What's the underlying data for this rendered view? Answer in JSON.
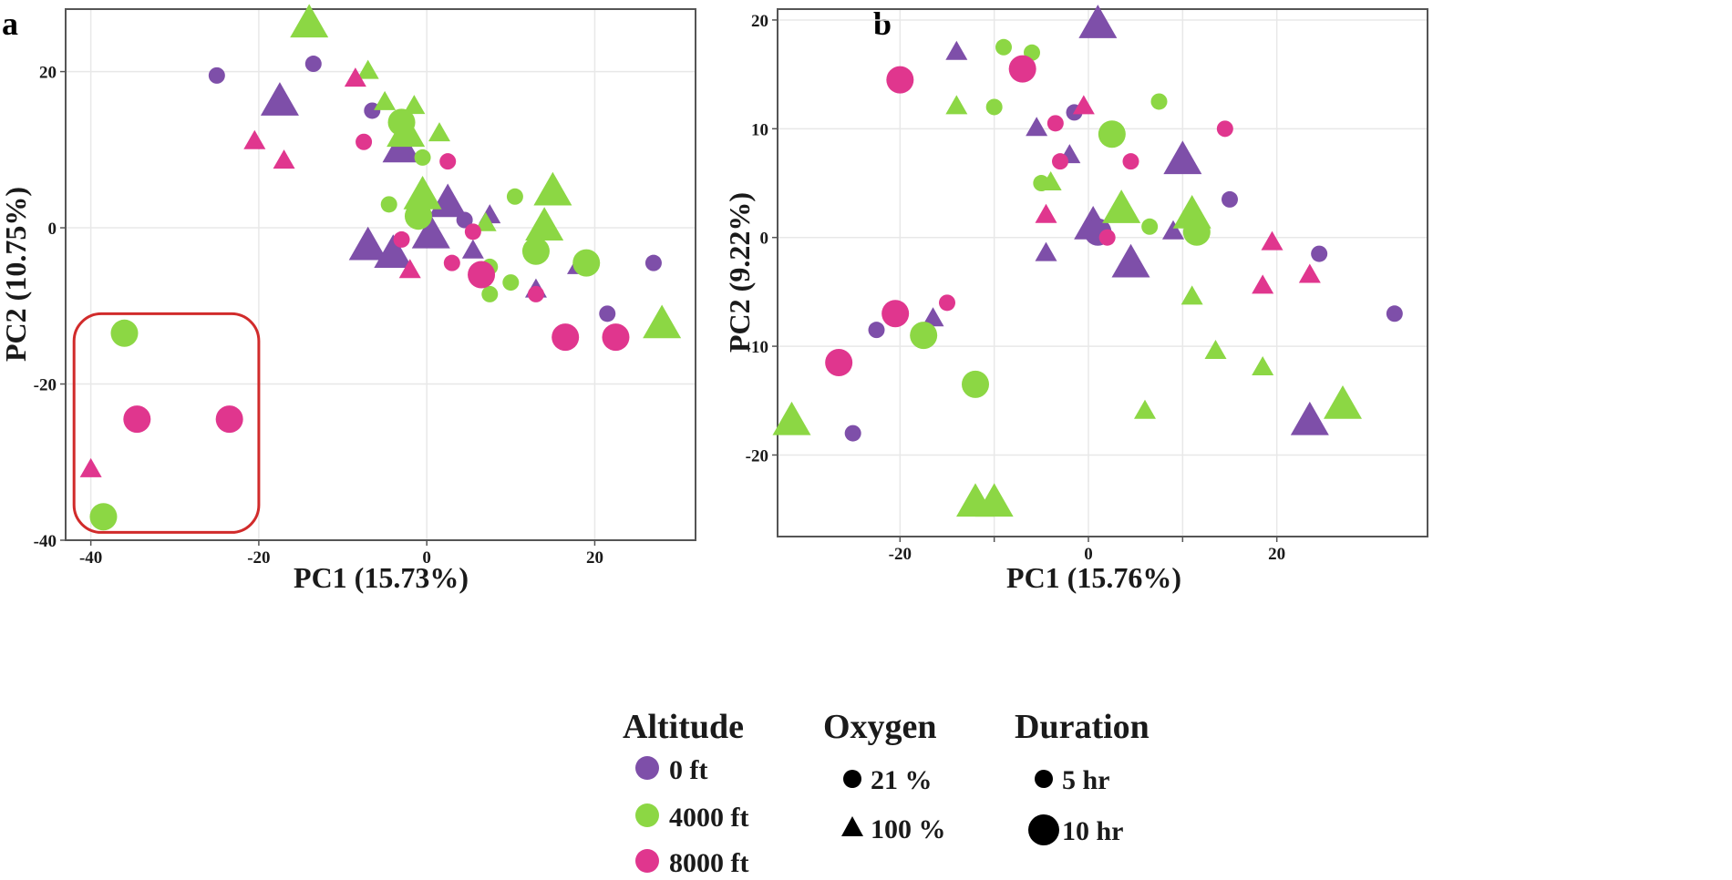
{
  "colors": {
    "0 ft": "#7e4fa9",
    "4000 ft": "#8cd744",
    "8000 ft": "#e0368e",
    "highlight_box": "#d12b2b",
    "axis": "#555555",
    "grid": "#e8e8e8"
  },
  "legend": {
    "altitude_title": "Altitude",
    "altitude_items": [
      "0 ft",
      "4000 ft",
      "8000 ft"
    ],
    "oxygen_title": "Oxygen",
    "oxygen_items": [
      {
        "label": "21 %",
        "marker": "circle"
      },
      {
        "label": "100 %",
        "marker": "triangle"
      }
    ],
    "duration_title": "Duration",
    "duration_items": [
      {
        "label": "5 hr",
        "size": "small"
      },
      {
        "label": "10 hr",
        "size": "large"
      }
    ]
  },
  "chart_data": [
    {
      "panel": "a",
      "type": "scatter",
      "xlabel": "PC1 (15.73%)",
      "ylabel": "PC2 (10.75%)",
      "xlim": [
        -43,
        32
      ],
      "ylim": [
        -40,
        28
      ],
      "xticks": [
        -40,
        -20,
        0,
        20
      ],
      "yticks": [
        -40,
        -20,
        0,
        20
      ],
      "xtick_labels": [
        "-40",
        "-20",
        "0",
        "20"
      ],
      "ytick_labels": [
        "-40",
        "-20",
        "0",
        "20"
      ],
      "grid": true,
      "highlight_box": {
        "x": [
          -42,
          -20
        ],
        "y": [
          -39,
          -11
        ]
      },
      "points": [
        {
          "x": -25,
          "y": 19.5,
          "alt": "0 ft",
          "shape": "circle",
          "dur": "5 hr"
        },
        {
          "x": -13.5,
          "y": 21,
          "alt": "0 ft",
          "shape": "circle",
          "dur": "5 hr"
        },
        {
          "x": -17.5,
          "y": 16,
          "alt": "0 ft",
          "shape": "triangle",
          "dur": "10 hr"
        },
        {
          "x": -6.5,
          "y": 15,
          "alt": "0 ft",
          "shape": "circle",
          "dur": "5 hr"
        },
        {
          "x": -3,
          "y": 10,
          "alt": "0 ft",
          "shape": "triangle",
          "dur": "10 hr"
        },
        {
          "x": 2.5,
          "y": 3,
          "alt": "0 ft",
          "shape": "triangle",
          "dur": "10 hr"
        },
        {
          "x": 4.5,
          "y": 1,
          "alt": "0 ft",
          "shape": "circle",
          "dur": "5 hr"
        },
        {
          "x": 7.5,
          "y": 1.5,
          "alt": "0 ft",
          "shape": "triangle",
          "dur": "5 hr"
        },
        {
          "x": 0.5,
          "y": -1,
          "alt": "0 ft",
          "shape": "triangle",
          "dur": "10 hr"
        },
        {
          "x": -7,
          "y": -2.5,
          "alt": "0 ft",
          "shape": "triangle",
          "dur": "10 hr"
        },
        {
          "x": -4,
          "y": -3.5,
          "alt": "0 ft",
          "shape": "triangle",
          "dur": "10 hr"
        },
        {
          "x": 5.5,
          "y": -3,
          "alt": "0 ft",
          "shape": "triangle",
          "dur": "5 hr"
        },
        {
          "x": 13,
          "y": -8,
          "alt": "0 ft",
          "shape": "triangle",
          "dur": "5 hr"
        },
        {
          "x": 18,
          "y": -5,
          "alt": "0 ft",
          "shape": "triangle",
          "dur": "5 hr"
        },
        {
          "x": 21.5,
          "y": -11,
          "alt": "0 ft",
          "shape": "circle",
          "dur": "5 hr"
        },
        {
          "x": 27,
          "y": -4.5,
          "alt": "0 ft",
          "shape": "circle",
          "dur": "5 hr"
        },
        {
          "x": -14,
          "y": 26,
          "alt": "4000 ft",
          "shape": "triangle",
          "dur": "10 hr"
        },
        {
          "x": -7,
          "y": 20,
          "alt": "4000 ft",
          "shape": "triangle",
          "dur": "5 hr"
        },
        {
          "x": -5,
          "y": 16,
          "alt": "4000 ft",
          "shape": "triangle",
          "dur": "5 hr"
        },
        {
          "x": -1.5,
          "y": 15.5,
          "alt": "4000 ft",
          "shape": "triangle",
          "dur": "5 hr"
        },
        {
          "x": -3,
          "y": 13.5,
          "alt": "4000 ft",
          "shape": "circle",
          "dur": "10 hr"
        },
        {
          "x": -2.5,
          "y": 12,
          "alt": "4000 ft",
          "shape": "triangle",
          "dur": "10 hr"
        },
        {
          "x": 1.5,
          "y": 12,
          "alt": "4000 ft",
          "shape": "triangle",
          "dur": "5 hr"
        },
        {
          "x": -0.5,
          "y": 9,
          "alt": "4000 ft",
          "shape": "circle",
          "dur": "5 hr"
        },
        {
          "x": -0.5,
          "y": 4,
          "alt": "4000 ft",
          "shape": "triangle",
          "dur": "10 hr"
        },
        {
          "x": -4.5,
          "y": 3,
          "alt": "4000 ft",
          "shape": "circle",
          "dur": "5 hr"
        },
        {
          "x": -1,
          "y": 1.5,
          "alt": "4000 ft",
          "shape": "circle",
          "dur": "10 hr"
        },
        {
          "x": 10.5,
          "y": 4,
          "alt": "4000 ft",
          "shape": "circle",
          "dur": "5 hr"
        },
        {
          "x": 15,
          "y": 4.5,
          "alt": "4000 ft",
          "shape": "triangle",
          "dur": "10 hr"
        },
        {
          "x": 14,
          "y": 0,
          "alt": "4000 ft",
          "shape": "triangle",
          "dur": "10 hr"
        },
        {
          "x": 13,
          "y": -3,
          "alt": "4000 ft",
          "shape": "circle",
          "dur": "10 hr"
        },
        {
          "x": 19,
          "y": -4.5,
          "alt": "4000 ft",
          "shape": "circle",
          "dur": "10 hr"
        },
        {
          "x": 7,
          "y": 0.5,
          "alt": "4000 ft",
          "shape": "triangle",
          "dur": "5 hr"
        },
        {
          "x": 7.5,
          "y": -5,
          "alt": "4000 ft",
          "shape": "circle",
          "dur": "5 hr"
        },
        {
          "x": 10,
          "y": -7,
          "alt": "4000 ft",
          "shape": "circle",
          "dur": "5 hr"
        },
        {
          "x": 7.5,
          "y": -8.5,
          "alt": "4000 ft",
          "shape": "circle",
          "dur": "5 hr"
        },
        {
          "x": 28,
          "y": -12.5,
          "alt": "4000 ft",
          "shape": "triangle",
          "dur": "10 hr"
        },
        {
          "x": -36,
          "y": -13.5,
          "alt": "4000 ft",
          "shape": "circle",
          "dur": "10 hr"
        },
        {
          "x": -38.5,
          "y": -37,
          "alt": "4000 ft",
          "shape": "circle",
          "dur": "10 hr"
        },
        {
          "x": -8.5,
          "y": 19,
          "alt": "8000 ft",
          "shape": "triangle",
          "dur": "5 hr"
        },
        {
          "x": -20.5,
          "y": 11,
          "alt": "8000 ft",
          "shape": "triangle",
          "dur": "5 hr"
        },
        {
          "x": -17,
          "y": 8.5,
          "alt": "8000 ft",
          "shape": "triangle",
          "dur": "5 hr"
        },
        {
          "x": -7.5,
          "y": 11,
          "alt": "8000 ft",
          "shape": "circle",
          "dur": "5 hr"
        },
        {
          "x": 2.5,
          "y": 8.5,
          "alt": "8000 ft",
          "shape": "circle",
          "dur": "5 hr"
        },
        {
          "x": 5.5,
          "y": -0.5,
          "alt": "8000 ft",
          "shape": "circle",
          "dur": "5 hr"
        },
        {
          "x": -3,
          "y": -1.5,
          "alt": "8000 ft",
          "shape": "circle",
          "dur": "5 hr"
        },
        {
          "x": 3,
          "y": -4.5,
          "alt": "8000 ft",
          "shape": "circle",
          "dur": "5 hr"
        },
        {
          "x": -2,
          "y": -5.5,
          "alt": "8000 ft",
          "shape": "triangle",
          "dur": "5 hr"
        },
        {
          "x": 6.5,
          "y": -6,
          "alt": "8000 ft",
          "shape": "circle",
          "dur": "10 hr"
        },
        {
          "x": 13,
          "y": -8.5,
          "alt": "8000 ft",
          "shape": "circle",
          "dur": "5 hr"
        },
        {
          "x": 16.5,
          "y": -14,
          "alt": "8000 ft",
          "shape": "circle",
          "dur": "10 hr"
        },
        {
          "x": 22.5,
          "y": -14,
          "alt": "8000 ft",
          "shape": "circle",
          "dur": "10 hr"
        },
        {
          "x": -34.5,
          "y": -24.5,
          "alt": "8000 ft",
          "shape": "circle",
          "dur": "10 hr"
        },
        {
          "x": -23.5,
          "y": -24.5,
          "alt": "8000 ft",
          "shape": "circle",
          "dur": "10 hr"
        },
        {
          "x": -40,
          "y": -31,
          "alt": "8000 ft",
          "shape": "triangle",
          "dur": "5 hr"
        }
      ]
    },
    {
      "panel": "b",
      "type": "scatter",
      "xlabel": "PC1 (15.76%)",
      "ylabel": "PC2 (9.22%)",
      "xlim": [
        -33,
        36
      ],
      "ylim": [
        -27.5,
        21
      ],
      "xticks": [
        -20,
        -10,
        0,
        10,
        20
      ],
      "yticks": [
        -20,
        -10,
        0,
        10,
        20
      ],
      "xtick_labels": [
        "-20",
        "",
        "0",
        "",
        "20"
      ],
      "ytick_labels": [
        "-20",
        "-10",
        "0",
        "10",
        "20"
      ],
      "grid": true,
      "points": [
        {
          "x": 1,
          "y": 19.5,
          "alt": "0 ft",
          "shape": "triangle",
          "dur": "10 hr"
        },
        {
          "x": -14,
          "y": 17,
          "alt": "0 ft",
          "shape": "triangle",
          "dur": "5 hr"
        },
        {
          "x": -1.5,
          "y": 11.5,
          "alt": "0 ft",
          "shape": "circle",
          "dur": "5 hr"
        },
        {
          "x": -5.5,
          "y": 10,
          "alt": "0 ft",
          "shape": "triangle",
          "dur": "5 hr"
        },
        {
          "x": -2,
          "y": 7.5,
          "alt": "0 ft",
          "shape": "triangle",
          "dur": "5 hr"
        },
        {
          "x": 10,
          "y": 7,
          "alt": "0 ft",
          "shape": "triangle",
          "dur": "10 hr"
        },
        {
          "x": 15,
          "y": 3.5,
          "alt": "0 ft",
          "shape": "circle",
          "dur": "5 hr"
        },
        {
          "x": 0.5,
          "y": 1,
          "alt": "0 ft",
          "shape": "triangle",
          "dur": "10 hr"
        },
        {
          "x": 1,
          "y": 0.5,
          "alt": "0 ft",
          "shape": "circle",
          "dur": "10 hr"
        },
        {
          "x": 9,
          "y": 0.5,
          "alt": "0 ft",
          "shape": "triangle",
          "dur": "5 hr"
        },
        {
          "x": -4.5,
          "y": -1.5,
          "alt": "0 ft",
          "shape": "triangle",
          "dur": "5 hr"
        },
        {
          "x": 4.5,
          "y": -2.5,
          "alt": "0 ft",
          "shape": "triangle",
          "dur": "10 hr"
        },
        {
          "x": 24.5,
          "y": -1.5,
          "alt": "0 ft",
          "shape": "circle",
          "dur": "5 hr"
        },
        {
          "x": -16.5,
          "y": -7.5,
          "alt": "0 ft",
          "shape": "triangle",
          "dur": "5 hr"
        },
        {
          "x": -22.5,
          "y": -8.5,
          "alt": "0 ft",
          "shape": "circle",
          "dur": "5 hr"
        },
        {
          "x": 32.5,
          "y": -7,
          "alt": "0 ft",
          "shape": "circle",
          "dur": "5 hr"
        },
        {
          "x": -25,
          "y": -18,
          "alt": "0 ft",
          "shape": "circle",
          "dur": "5 hr"
        },
        {
          "x": 23.5,
          "y": -17,
          "alt": "0 ft",
          "shape": "triangle",
          "dur": "10 hr"
        },
        {
          "x": -9,
          "y": 17.5,
          "alt": "4000 ft",
          "shape": "circle",
          "dur": "5 hr"
        },
        {
          "x": -6,
          "y": 17,
          "alt": "4000 ft",
          "shape": "circle",
          "dur": "5 hr"
        },
        {
          "x": -14,
          "y": 12,
          "alt": "4000 ft",
          "shape": "triangle",
          "dur": "5 hr"
        },
        {
          "x": -10,
          "y": 12,
          "alt": "4000 ft",
          "shape": "circle",
          "dur": "5 hr"
        },
        {
          "x": 7.5,
          "y": 12.5,
          "alt": "4000 ft",
          "shape": "circle",
          "dur": "5 hr"
        },
        {
          "x": 2.5,
          "y": 9.5,
          "alt": "4000 ft",
          "shape": "circle",
          "dur": "10 hr"
        },
        {
          "x": -5,
          "y": 5,
          "alt": "4000 ft",
          "shape": "circle",
          "dur": "5 hr"
        },
        {
          "x": -4,
          "y": 5,
          "alt": "4000 ft",
          "shape": "triangle",
          "dur": "5 hr"
        },
        {
          "x": 3.5,
          "y": 2.5,
          "alt": "4000 ft",
          "shape": "triangle",
          "dur": "10 hr"
        },
        {
          "x": 6.5,
          "y": 1,
          "alt": "4000 ft",
          "shape": "circle",
          "dur": "5 hr"
        },
        {
          "x": 11,
          "y": 2,
          "alt": "4000 ft",
          "shape": "triangle",
          "dur": "10 hr"
        },
        {
          "x": 11.5,
          "y": 0.5,
          "alt": "4000 ft",
          "shape": "circle",
          "dur": "10 hr"
        },
        {
          "x": 11,
          "y": -5.5,
          "alt": "4000 ft",
          "shape": "triangle",
          "dur": "5 hr"
        },
        {
          "x": -17.5,
          "y": -9,
          "alt": "4000 ft",
          "shape": "circle",
          "dur": "10 hr"
        },
        {
          "x": -12,
          "y": -13.5,
          "alt": "4000 ft",
          "shape": "circle",
          "dur": "10 hr"
        },
        {
          "x": 13.5,
          "y": -10.5,
          "alt": "4000 ft",
          "shape": "triangle",
          "dur": "5 hr"
        },
        {
          "x": 18.5,
          "y": -12,
          "alt": "4000 ft",
          "shape": "triangle",
          "dur": "5 hr"
        },
        {
          "x": 6,
          "y": -16,
          "alt": "4000 ft",
          "shape": "triangle",
          "dur": "5 hr"
        },
        {
          "x": 27,
          "y": -15.5,
          "alt": "4000 ft",
          "shape": "triangle",
          "dur": "10 hr"
        },
        {
          "x": -31.5,
          "y": -17,
          "alt": "4000 ft",
          "shape": "triangle",
          "dur": "10 hr"
        },
        {
          "x": -12,
          "y": -24.5,
          "alt": "4000 ft",
          "shape": "triangle",
          "dur": "10 hr"
        },
        {
          "x": -10,
          "y": -24.5,
          "alt": "4000 ft",
          "shape": "triangle",
          "dur": "10 hr"
        },
        {
          "x": -20,
          "y": 14.5,
          "alt": "8000 ft",
          "shape": "circle",
          "dur": "10 hr"
        },
        {
          "x": -7,
          "y": 15.5,
          "alt": "8000 ft",
          "shape": "circle",
          "dur": "10 hr"
        },
        {
          "x": -0.5,
          "y": 12,
          "alt": "8000 ft",
          "shape": "triangle",
          "dur": "5 hr"
        },
        {
          "x": -3.5,
          "y": 10.5,
          "alt": "8000 ft",
          "shape": "circle",
          "dur": "5 hr"
        },
        {
          "x": 14.5,
          "y": 10,
          "alt": "8000 ft",
          "shape": "circle",
          "dur": "5 hr"
        },
        {
          "x": -3,
          "y": 7,
          "alt": "8000 ft",
          "shape": "circle",
          "dur": "5 hr"
        },
        {
          "x": 4.5,
          "y": 7,
          "alt": "8000 ft",
          "shape": "circle",
          "dur": "5 hr"
        },
        {
          "x": -4.5,
          "y": 2,
          "alt": "8000 ft",
          "shape": "triangle",
          "dur": "5 hr"
        },
        {
          "x": 2,
          "y": 0,
          "alt": "8000 ft",
          "shape": "circle",
          "dur": "5 hr"
        },
        {
          "x": 19.5,
          "y": -0.5,
          "alt": "8000 ft",
          "shape": "triangle",
          "dur": "5 hr"
        },
        {
          "x": 18.5,
          "y": -4.5,
          "alt": "8000 ft",
          "shape": "triangle",
          "dur": "5 hr"
        },
        {
          "x": 23.5,
          "y": -3.5,
          "alt": "8000 ft",
          "shape": "triangle",
          "dur": "5 hr"
        },
        {
          "x": -15,
          "y": -6,
          "alt": "8000 ft",
          "shape": "circle",
          "dur": "5 hr"
        },
        {
          "x": -20.5,
          "y": -7,
          "alt": "8000 ft",
          "shape": "circle",
          "dur": "10 hr"
        },
        {
          "x": -26.5,
          "y": -11.5,
          "alt": "8000 ft",
          "shape": "circle",
          "dur": "10 hr"
        }
      ]
    }
  ]
}
